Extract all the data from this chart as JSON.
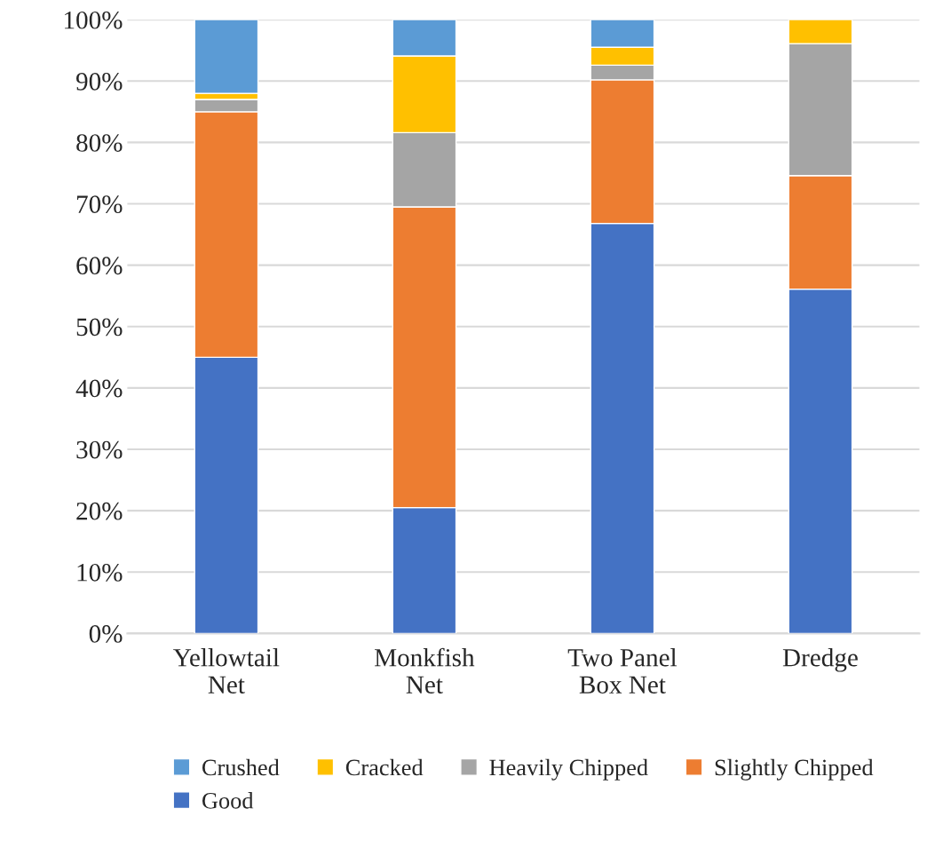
{
  "chart_data": {
    "type": "bar",
    "stacked": true,
    "categories": [
      "Yellowtail\nNet",
      "Monkfish\nNet",
      "Two Panel\nBox Net",
      "Dredge"
    ],
    "series": [
      {
        "name": "Good",
        "color": "#4472c4",
        "values": [
          45,
          20.5,
          66.8,
          56.1
        ]
      },
      {
        "name": "Slightly Chipped",
        "color": "#ed7d31",
        "values": [
          40,
          49,
          23.4,
          18.5
        ]
      },
      {
        "name": "Heavily Chipped",
        "color": "#a5a5a5",
        "values": [
          2,
          12.1,
          2.4,
          21.5
        ]
      },
      {
        "name": "Cracked",
        "color": "#ffc000",
        "values": [
          1,
          12.5,
          2.9,
          3.9
        ]
      },
      {
        "name": "Crushed",
        "color": "#5b9bd5",
        "values": [
          12,
          5.9,
          4.5,
          null
        ]
      }
    ],
    "ylim": [
      0,
      100
    ],
    "yticks": [
      {
        "value": 0,
        "label": "0%"
      },
      {
        "value": 10,
        "label": "10%"
      },
      {
        "value": 20,
        "label": "20%"
      },
      {
        "value": 30,
        "label": "30%"
      },
      {
        "value": 40,
        "label": "40%"
      },
      {
        "value": 50,
        "label": "50%"
      },
      {
        "value": 60,
        "label": "60%"
      },
      {
        "value": 70,
        "label": "70%"
      },
      {
        "value": 80,
        "label": "80%"
      },
      {
        "value": 90,
        "label": "90%"
      },
      {
        "value": 100,
        "label": "100%"
      }
    ],
    "grid": "y",
    "legend": "bottom"
  }
}
